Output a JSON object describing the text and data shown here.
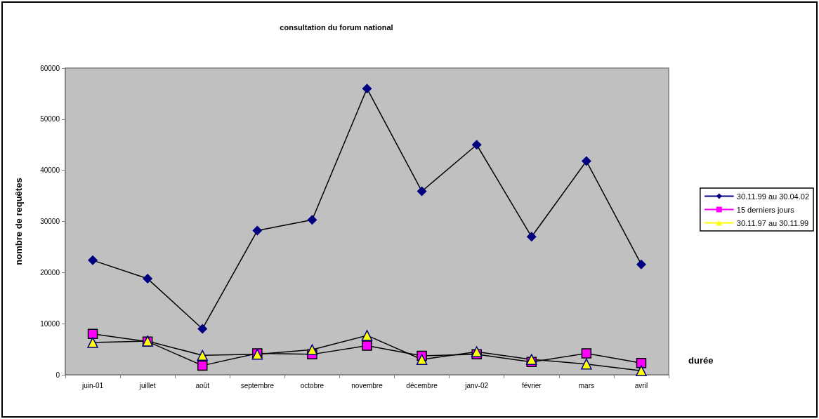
{
  "chart_data": {
    "type": "line",
    "title": "consultation du forum national",
    "xlabel": "durée",
    "ylabel": "nombre de requêtes",
    "categories": [
      "juin-01",
      "juillet",
      "août",
      "septembre",
      "octobre",
      "novembre",
      "décembre",
      "janv-02",
      "février",
      "mars",
      "avril"
    ],
    "series": [
      {
        "name": "30.11.99 au 30.04.02",
        "color": "#000080",
        "marker": "diamond",
        "values": [
          22400,
          18800,
          9000,
          28200,
          30300,
          56000,
          35900,
          45000,
          27000,
          41800,
          21600
        ]
      },
      {
        "name": "15 derniers jours",
        "color": "#ff00ff",
        "marker": "square",
        "values": [
          8000,
          6500,
          1800,
          4200,
          4000,
          5700,
          3700,
          4000,
          2500,
          4200,
          2300
        ]
      },
      {
        "name": "30.11.97 au 30.11.99",
        "color": "#ffff00",
        "marker": "triangle",
        "values": [
          6300,
          6600,
          3800,
          4000,
          4900,
          7700,
          3000,
          4500,
          3000,
          2100,
          800
        ]
      }
    ],
    "ylim": [
      0,
      60000
    ],
    "yticks": [
      0,
      10000,
      20000,
      30000,
      40000,
      50000,
      60000
    ],
    "legend": "right",
    "line_style": "solid"
  }
}
